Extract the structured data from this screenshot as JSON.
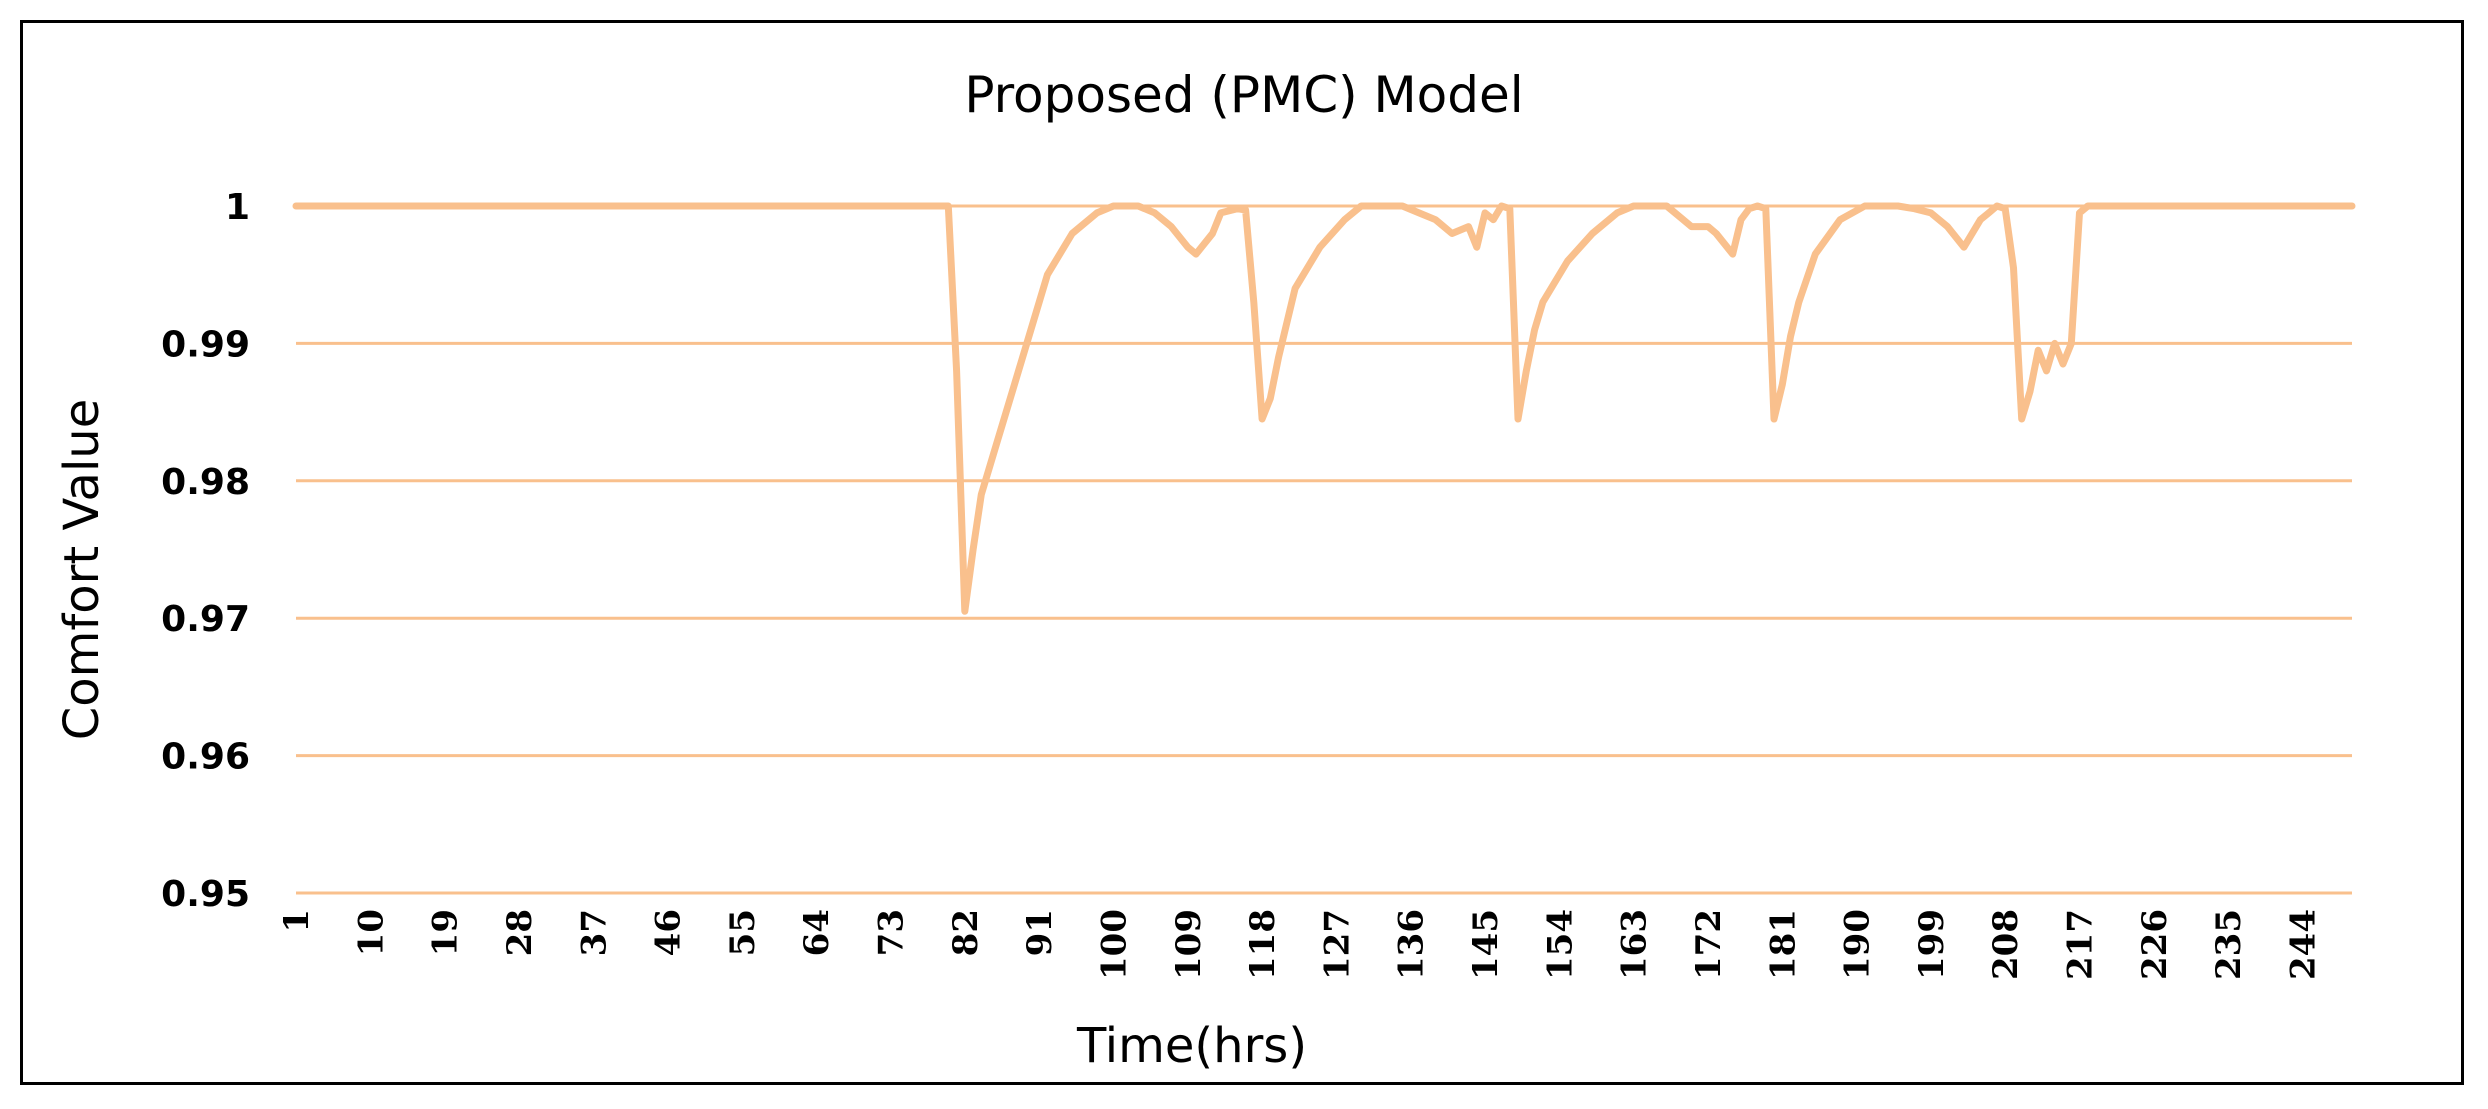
{
  "chart_data": {
    "type": "line",
    "title": "Proposed (PMC) Model",
    "xlabel": "Time(hrs)",
    "ylabel": "Comfort Value",
    "ylim": [
      0.95,
      1.0
    ],
    "xlim": [
      1,
      250
    ],
    "yticks": [
      "1",
      "0.99",
      "0.98",
      "0.97",
      "0.96",
      "0.95"
    ],
    "ytick_values": [
      1.0,
      0.99,
      0.98,
      0.97,
      0.96,
      0.95
    ],
    "xticks": [
      "1",
      "10",
      "19",
      "28",
      "37",
      "46",
      "55",
      "64",
      "73",
      "82",
      "91",
      "100",
      "109",
      "118",
      "127",
      "136",
      "145",
      "154",
      "163",
      "172",
      "181",
      "190",
      "199",
      "208",
      "217",
      "226",
      "235",
      "244"
    ],
    "xtick_values": [
      1,
      10,
      19,
      28,
      37,
      46,
      55,
      64,
      73,
      82,
      91,
      100,
      109,
      118,
      127,
      136,
      145,
      154,
      163,
      172,
      181,
      190,
      199,
      208,
      217,
      226,
      235,
      244
    ],
    "grid": true,
    "legend": "none",
    "line_color": "#F9C08D",
    "grid_color": "#F9C08D",
    "series": [
      {
        "x": [
          1,
          80,
          81,
          82,
          83,
          84,
          86,
          88,
          90,
          92,
          95,
          98,
          100,
          103,
          105,
          107,
          109,
          110,
          112,
          113,
          115,
          116,
          117,
          118,
          119,
          120,
          122,
          125,
          128,
          130,
          132,
          135,
          137,
          139,
          141,
          143,
          144,
          145,
          146,
          147,
          148,
          149,
          150,
          151,
          152,
          155,
          158,
          161,
          163,
          165,
          167,
          169,
          170,
          172,
          173,
          175,
          176,
          177,
          178,
          179,
          180,
          181,
          182,
          183,
          185,
          188,
          191,
          193,
          195,
          197,
          199,
          201,
          203,
          205,
          206,
          207,
          208,
          209,
          210,
          211,
          212,
          213,
          214,
          215,
          216,
          217,
          218,
          219,
          250
        ],
        "y": [
          1.0,
          1.0,
          0.988,
          0.9705,
          0.975,
          0.979,
          0.983,
          0.987,
          0.991,
          0.995,
          0.998,
          0.9995,
          1.0,
          1.0,
          0.9995,
          0.9985,
          0.997,
          0.9965,
          0.998,
          0.9995,
          0.9998,
          0.9997,
          0.993,
          0.9845,
          0.986,
          0.989,
          0.994,
          0.997,
          0.999,
          1.0,
          1.0,
          1.0,
          0.9995,
          0.999,
          0.998,
          0.9985,
          0.997,
          0.9995,
          0.999,
          1.0,
          0.9998,
          0.9845,
          0.988,
          0.991,
          0.993,
          0.996,
          0.998,
          0.9995,
          1.0,
          1.0,
          1.0,
          0.999,
          0.9985,
          0.9985,
          0.998,
          0.9965,
          0.999,
          0.9998,
          1.0,
          0.9998,
          0.9845,
          0.987,
          0.9905,
          0.993,
          0.9965,
          0.999,
          1.0,
          1.0,
          1.0,
          0.9998,
          0.9995,
          0.9985,
          0.997,
          0.999,
          0.9995,
          1.0,
          0.9998,
          0.9955,
          0.9845,
          0.9865,
          0.9895,
          0.988,
          0.99,
          0.9885,
          0.99,
          0.9995,
          1.0,
          1.0,
          1.0
        ]
      }
    ]
  }
}
